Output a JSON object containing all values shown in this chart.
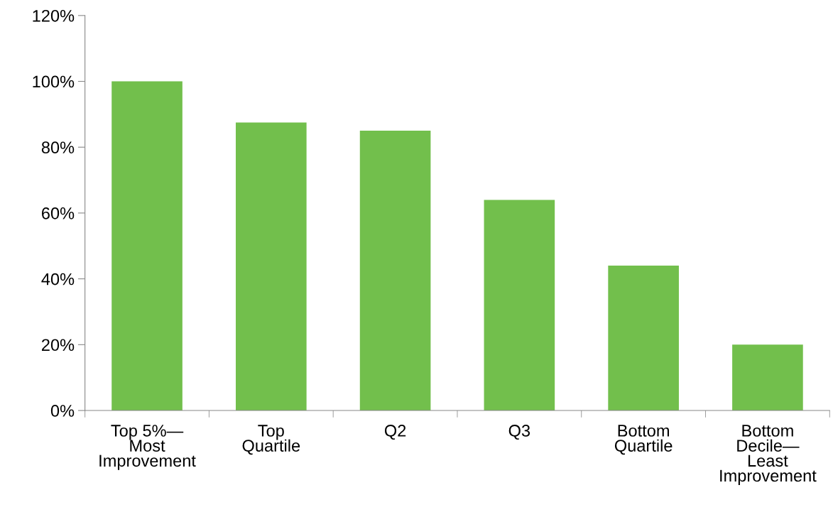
{
  "chart_data": {
    "type": "bar",
    "categories": [
      "Top 5%—\nMost\nImprovement",
      "Top\nQuartile",
      "Q2",
      "Q3",
      "Bottom\nQuartile",
      "Bottom\nDecile—\nLeast\nImprovement"
    ],
    "values": [
      100,
      87.5,
      85,
      64,
      44,
      20
    ],
    "color": "#72bf4c",
    "ylim": [
      0,
      120
    ],
    "yticks": [
      {
        "value": 0,
        "label": "0%"
      },
      {
        "value": 20,
        "label": "20%"
      },
      {
        "value": 40,
        "label": "40%"
      },
      {
        "value": 60,
        "label": "60%"
      },
      {
        "value": 80,
        "label": "80%"
      },
      {
        "value": 100,
        "label": "100%"
      },
      {
        "value": 120,
        "label": "120%"
      }
    ],
    "grid": false
  }
}
